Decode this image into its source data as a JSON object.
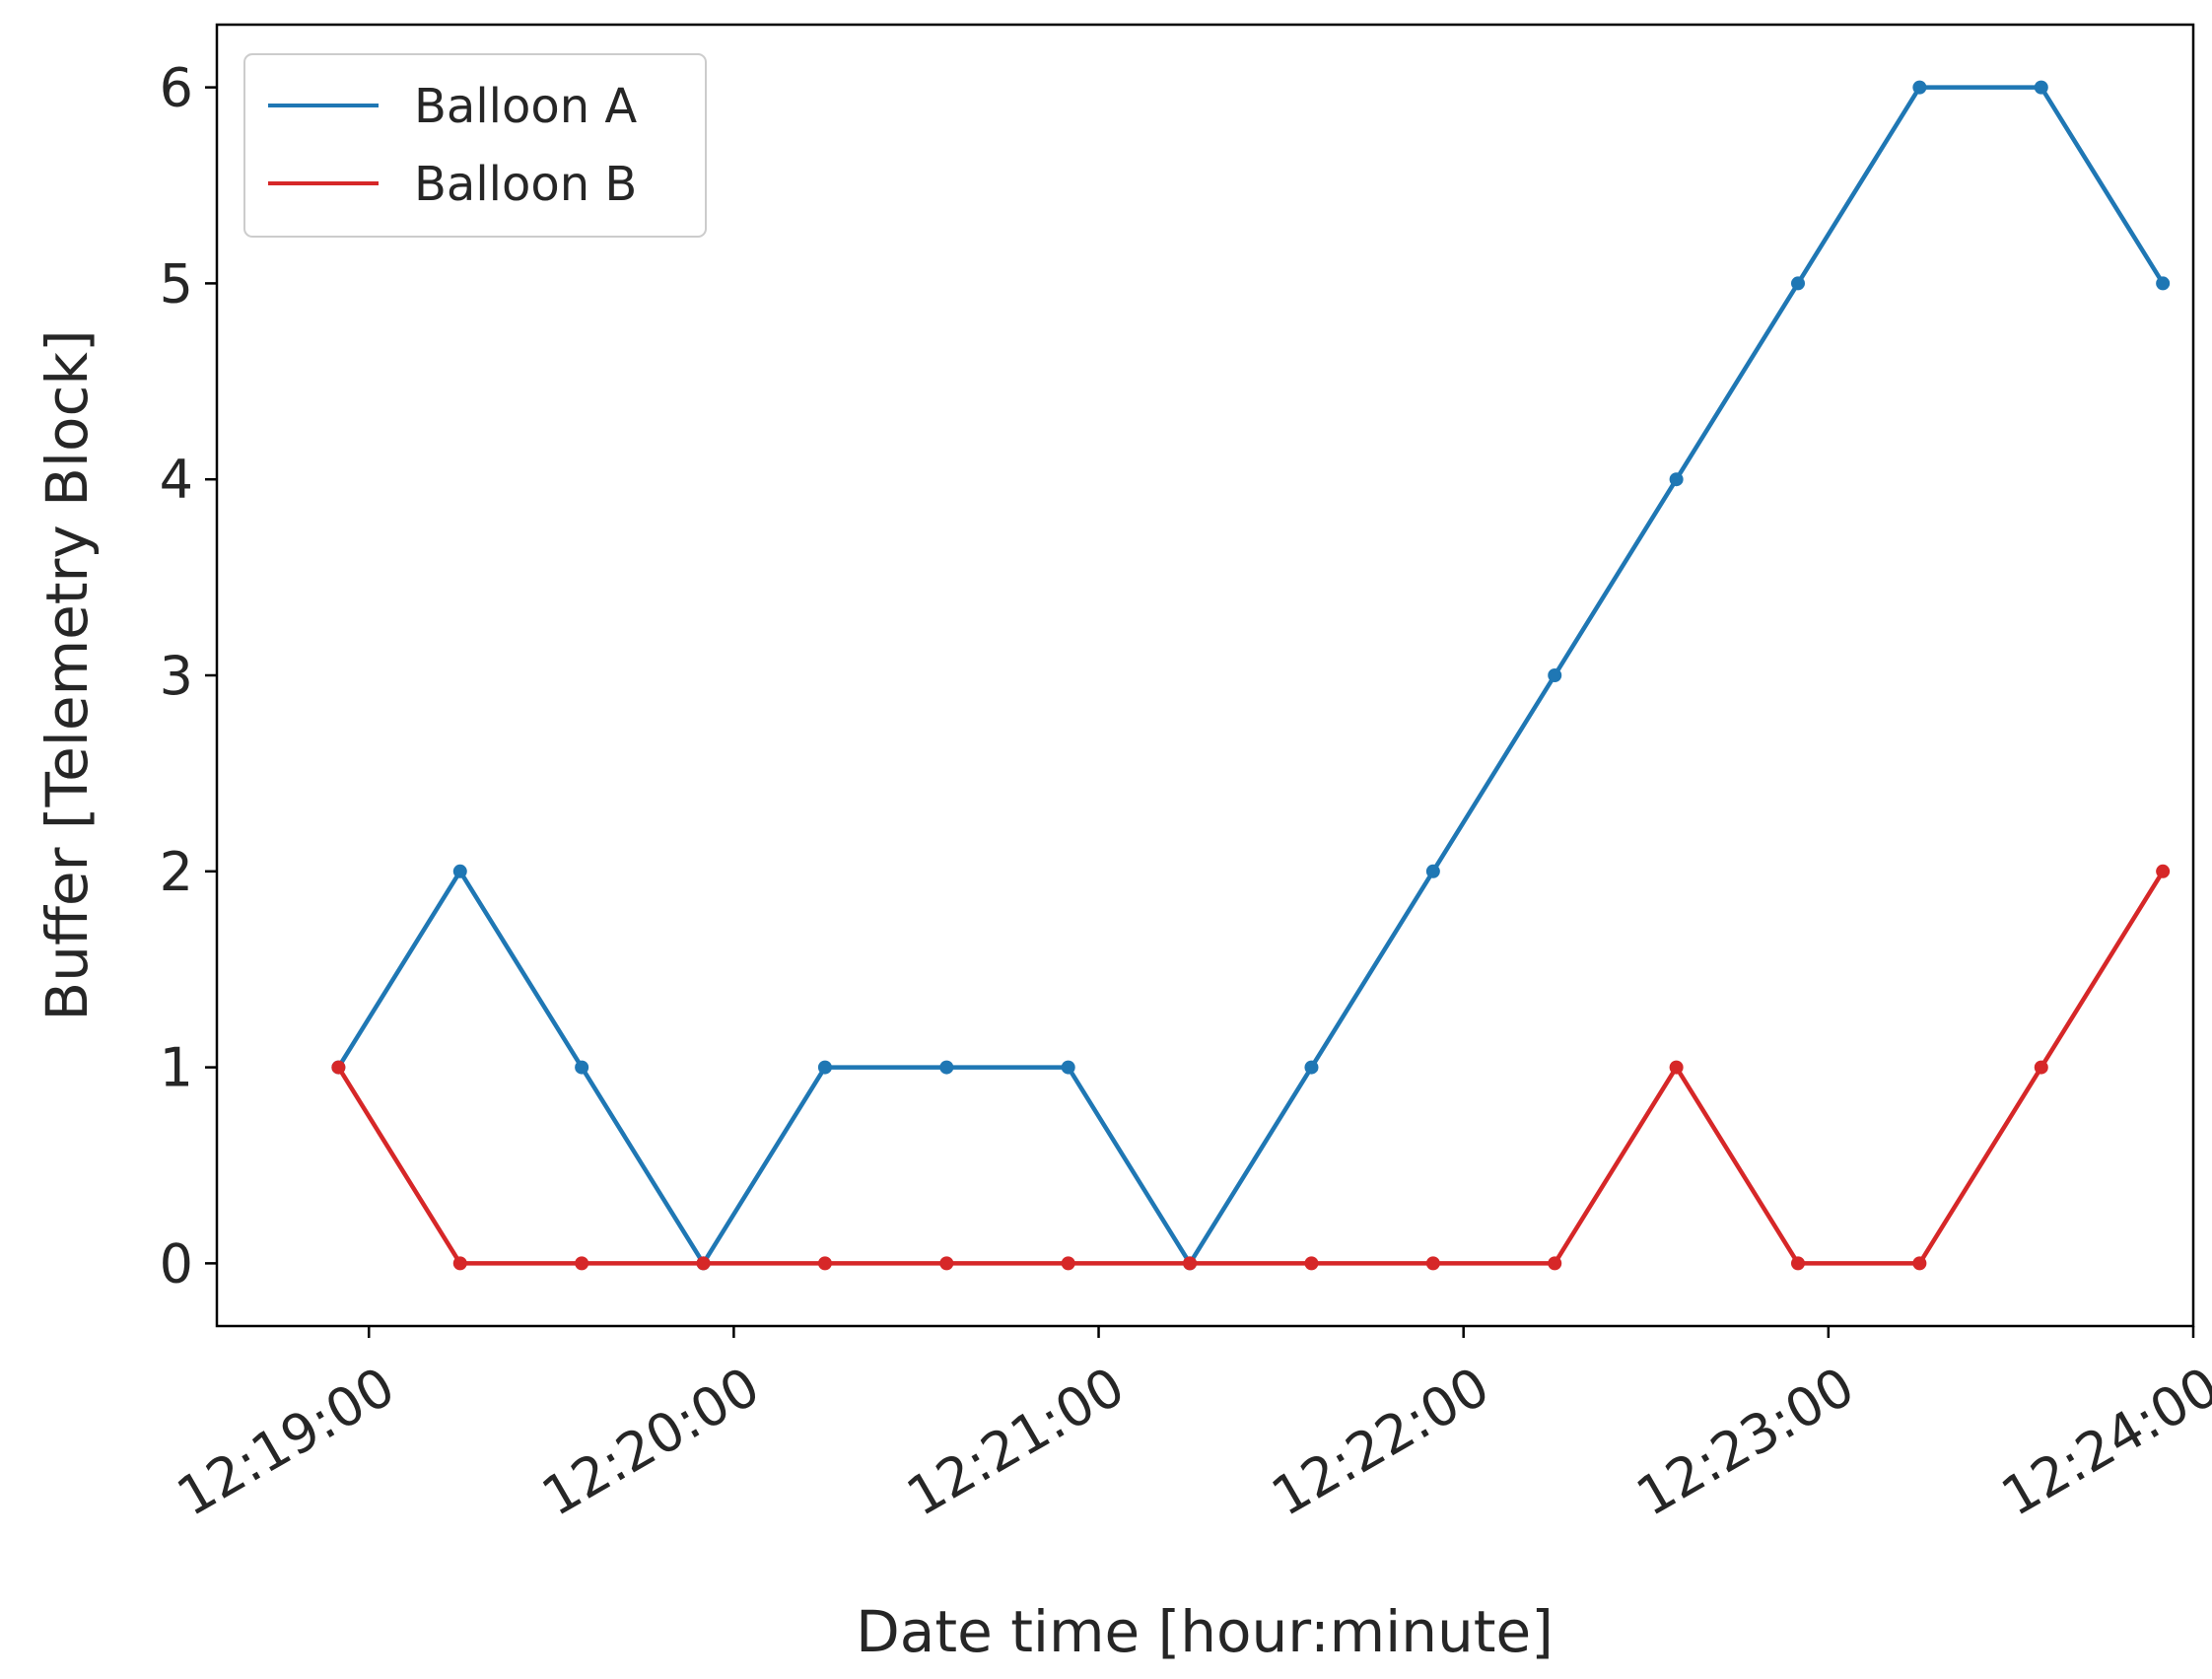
{
  "chart_data": {
    "type": "line",
    "xlabel": "Date time [hour:minute]",
    "ylabel": "Buffer [Telemetry Block]",
    "x_unit": "time of day (HH:MM:SS)",
    "x": [
      "12:18:55",
      "12:19:15",
      "12:19:35",
      "12:19:55",
      "12:20:15",
      "12:20:35",
      "12:20:55",
      "12:21:15",
      "12:21:35",
      "12:21:55",
      "12:22:15",
      "12:22:35",
      "12:22:55",
      "12:23:15",
      "12:23:35",
      "12:23:55"
    ],
    "xlim": [
      "12:18:35",
      "12:24:00"
    ],
    "xticks": [
      "12:19:00",
      "12:20:00",
      "12:21:00",
      "12:22:00",
      "12:23:00",
      "12:24:00"
    ],
    "ylim": [
      -0.32,
      6.32
    ],
    "yticks": [
      0,
      1,
      2,
      3,
      4,
      5,
      6
    ],
    "grid": false,
    "legend_position": "top-left",
    "series": [
      {
        "name": "Balloon A",
        "color": "#1f77b4",
        "values": [
          1,
          2,
          1,
          0,
          1,
          1,
          1,
          0,
          1,
          2,
          3,
          4,
          5,
          6,
          6,
          5
        ]
      },
      {
        "name": "Balloon B",
        "color": "#d62728",
        "values": [
          1,
          0,
          0,
          0,
          0,
          0,
          0,
          0,
          0,
          0,
          0,
          1,
          0,
          0,
          1,
          2
        ]
      }
    ]
  }
}
